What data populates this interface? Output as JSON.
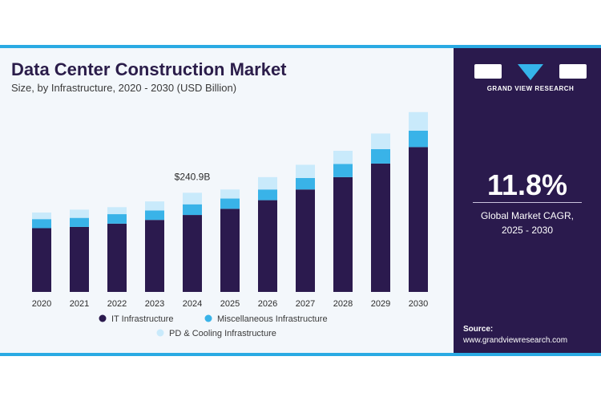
{
  "header": {
    "title": "Data Center Construction Market",
    "subtitle": "Size, by Infrastructure, 2020 - 2030 (USD Billion)"
  },
  "sidebar": {
    "brand": "GRAND VIEW RESEARCH",
    "cagr_value": "11.8%",
    "cagr_label_line1": "Global Market CAGR,",
    "cagr_label_line2": "2025 - 2030",
    "source_label": "Source:",
    "source_url": "www.grandviewresearch.com"
  },
  "colors": {
    "it": "#2b1a4e",
    "misc": "#39b3e8",
    "pd": "#c9eafb",
    "sidebar_bg": "#2a1a4d",
    "accent": "#2aaae3"
  },
  "chart_data": {
    "type": "bar",
    "stacked": true,
    "categories": [
      "2020",
      "2021",
      "2022",
      "2023",
      "2024",
      "2025",
      "2026",
      "2027",
      "2028",
      "2029",
      "2030"
    ],
    "series": [
      {
        "name": "IT Infrastructure",
        "values": [
          155,
          158,
          166,
          175,
          187,
          202,
          223,
          249,
          279,
          312,
          352
        ]
      },
      {
        "name": "Miscellaneous Infrastructure",
        "values": [
          22,
          22,
          23,
          23,
          26,
          25,
          26,
          28,
          32,
          35,
          40
        ]
      },
      {
        "name": "PD & Cooling Infrastructure",
        "values": [
          16,
          20,
          17,
          22,
          28,
          22,
          30,
          32,
          32,
          38,
          45
        ]
      }
    ],
    "annotations": [
      {
        "category": "2024",
        "text": "$240.9B"
      }
    ],
    "ylim": [
      0,
      460
    ],
    "legend": "bottom",
    "grid": false
  }
}
